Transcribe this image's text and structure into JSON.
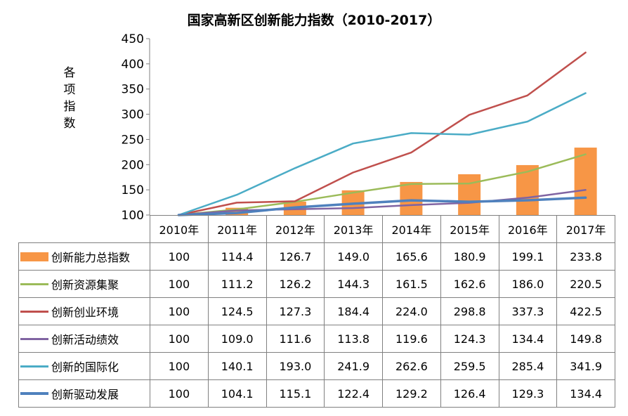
{
  "chart_data": {
    "type": "bar+line",
    "title": "国家高新区创新能力指数（2010-2017）",
    "ylabel": "各 项 指 数",
    "ylim": [
      100,
      450
    ],
    "yticks": [
      "100",
      "150",
      "200",
      "250",
      "300",
      "350",
      "400",
      "450"
    ],
    "categories": [
      "2010年",
      "2011年",
      "2012年",
      "2013年",
      "2014年",
      "2015年",
      "2016年",
      "2017年"
    ],
    "x_labels": [
      "2010年",
      "2011年",
      "2012年",
      "2013年",
      "2014年",
      "2015年",
      "2016年",
      "2017年"
    ],
    "series": [
      {
        "name": "创新能力总指数",
        "kind": "bar",
        "color": "#F79646",
        "values": [
          100,
          114.4,
          126.7,
          149.0,
          165.6,
          180.9,
          199.1,
          233.8
        ],
        "labels": [
          "100",
          "114.4",
          "126.7",
          "149.0",
          "165.6",
          "180.9",
          "199.1",
          "233.8"
        ]
      },
      {
        "name": "创新资源集聚",
        "kind": "line",
        "color": "#9BBB59",
        "values": [
          100,
          111.2,
          126.2,
          144.3,
          161.5,
          162.6,
          186.0,
          220.5
        ],
        "labels": [
          "100",
          "111.2",
          "126.2",
          "144.3",
          "161.5",
          "162.6",
          "186.0",
          "220.5"
        ]
      },
      {
        "name": "创新创业环境",
        "kind": "line",
        "color": "#C0504D",
        "values": [
          100,
          124.5,
          127.3,
          184.4,
          224.0,
          298.8,
          337.3,
          422.5
        ],
        "labels": [
          "100",
          "124.5",
          "127.3",
          "184.4",
          "224.0",
          "298.8",
          "337.3",
          "422.5"
        ]
      },
      {
        "name": "创新活动绩效",
        "kind": "line",
        "color": "#8064A2",
        "values": [
          100,
          109.0,
          111.6,
          113.8,
          119.6,
          124.3,
          134.4,
          149.8
        ],
        "labels": [
          "100",
          "109.0",
          "111.6",
          "113.8",
          "119.6",
          "124.3",
          "134.4",
          "149.8"
        ]
      },
      {
        "name": "创新的国际化",
        "kind": "line",
        "color": "#4BACC6",
        "values": [
          100,
          140.1,
          193.0,
          241.9,
          262.6,
          259.5,
          285.4,
          341.9
        ],
        "labels": [
          "100",
          "140.1",
          "193.0",
          "241.9",
          "262.6",
          "259.5",
          "285.4",
          "341.9"
        ]
      },
      {
        "name": "创新驱动发展",
        "kind": "line",
        "color": "#4F81BD",
        "values": [
          100,
          104.1,
          115.1,
          122.4,
          129.2,
          126.4,
          129.3,
          134.4
        ],
        "labels": [
          "100",
          "104.1",
          "115.1",
          "122.4",
          "129.2",
          "126.4",
          "129.3",
          "134.4"
        ]
      }
    ],
    "grid": false,
    "legend": "data-table"
  }
}
